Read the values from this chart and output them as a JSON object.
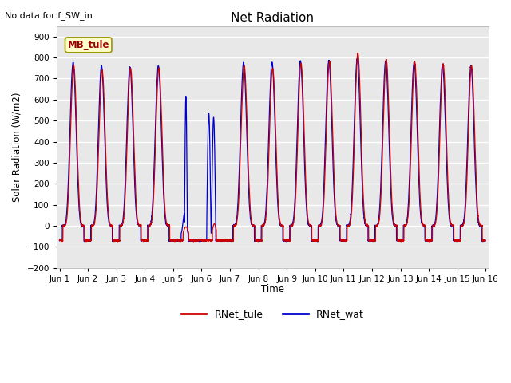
{
  "title": "Net Radiation",
  "subtitle": "No data for f_SW_in",
  "ylabel": "Solar Radiation (W/m2)",
  "xlabel": "Time",
  "ylim": [
    -200,
    950
  ],
  "yticks": [
    -200,
    -100,
    0,
    100,
    200,
    300,
    400,
    500,
    600,
    700,
    800,
    900
  ],
  "color_tule": "#cc0000",
  "color_wat": "#0000cc",
  "legend_label_tule": "RNet_tule",
  "legend_label_wat": "RNet_wat",
  "annotation_box": "MB_tule",
  "annotation_box_bg": "#ffffcc",
  "annotation_box_border": "#999900",
  "annotation_box_text_color": "#990000",
  "bg_color": "#e8e8e8",
  "grid_color": "#ffffff",
  "x_tick_labels": [
    "Jun 1",
    "Jun 2",
    "Jun 3",
    "Jun 4",
    "Jun 5",
    "Jun 6",
    "Jun 7",
    "Jun 8",
    "Jun 9",
    "Jun 10",
    "Jun 11",
    "Jun 12",
    "Jun 13",
    "Jun 14",
    "Jun 15",
    "Jun 16"
  ],
  "x_tick_positions": [
    0,
    1,
    2,
    3,
    4,
    5,
    6,
    7,
    8,
    9,
    10,
    11,
    12,
    13,
    14,
    15
  ],
  "night_val": -70,
  "peaks_tule": [
    760,
    740,
    750,
    750,
    30,
    30,
    760,
    750,
    770,
    780,
    820,
    790,
    780,
    770,
    760
  ],
  "peaks_wat": [
    775,
    760,
    755,
    760,
    90,
    550,
    775,
    775,
    785,
    785,
    795,
    785,
    775,
    765,
    760
  ]
}
